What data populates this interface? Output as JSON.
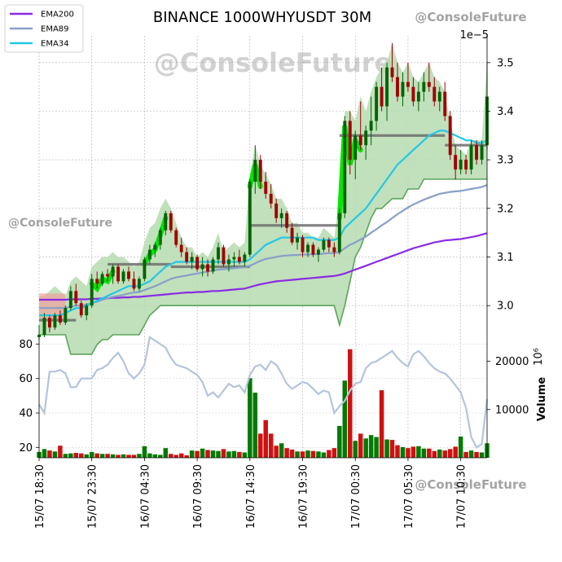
{
  "chart_data": {
    "type": "candlestick",
    "title": "BINANCE 1000WHYUSDT 30M",
    "price_exponent_label": "1e−5",
    "volume_exponent_label": "10⁶",
    "volume_axis_label": "Volume",
    "watermarks": [
      "@ConsoleFuture",
      "@ConsoleFuture",
      "@ConsoleFuture",
      "@ConsoleFuture"
    ],
    "legend": [
      {
        "name": "EMA200",
        "color": "#8a2be2"
      },
      {
        "name": "EMA89",
        "color": "#87a0c8"
      },
      {
        "name": "EMA34",
        "color": "#22c8e6"
      }
    ],
    "colors": {
      "up": "#006400",
      "down": "#a00000",
      "vol_up": "#007a00",
      "vol_down": "#d01010",
      "band_fill": "#b6dab0",
      "band_edge": "#5aa55a",
      "trend_hot": "#00e600",
      "level": "#6f6f6f",
      "rsi": "#b4c4dc"
    },
    "price_axis": {
      "ylim": [
        2.935,
        3.555
      ],
      "ticks": [
        3.0,
        3.1,
        3.2,
        3.3,
        3.4,
        3.5
      ],
      "tick_labels": [
        "3.0",
        "3.1",
        "3.2",
        "3.3",
        "3.4",
        "3.5"
      ]
    },
    "left_axis": {
      "ylim": [
        14,
        84
      ],
      "ticks": [
        20,
        40,
        60,
        80
      ],
      "tick_labels": [
        "20",
        "40",
        "60",
        "80"
      ]
    },
    "volume_axis": {
      "ylim": [
        0,
        25000
      ],
      "ticks": [
        10000,
        20000
      ],
      "tick_labels": [
        "10000",
        "20000"
      ]
    },
    "x_ticks": [
      {
        "index": 0,
        "label": "15/07 18:30"
      },
      {
        "index": 10,
        "label": "15/07 23:30"
      },
      {
        "index": 20,
        "label": "16/07 04:30"
      },
      {
        "index": 30,
        "label": "16/07 09:30"
      },
      {
        "index": 40,
        "label": "16/07 14:30"
      },
      {
        "index": 50,
        "label": "16/07 19:30"
      },
      {
        "index": 60,
        "label": "17/07 00:30"
      },
      {
        "index": 70,
        "label": "17/07 05:30"
      },
      {
        "index": 80,
        "label": "17/07 10:30"
      }
    ],
    "candles": [
      [
        2.935,
        2.96,
        2.93,
        2.94
      ],
      [
        2.94,
        2.985,
        2.935,
        2.975
      ],
      [
        2.975,
        2.98,
        2.945,
        2.955
      ],
      [
        2.955,
        2.985,
        2.95,
        2.98
      ],
      [
        2.98,
        2.99,
        2.96,
        2.965
      ],
      [
        2.965,
        3.0,
        2.96,
        2.995
      ],
      [
        2.995,
        3.04,
        2.99,
        3.03
      ],
      [
        3.03,
        3.045,
        3.0,
        3.005
      ],
      [
        3.005,
        3.01,
        2.975,
        2.98
      ],
      [
        2.98,
        3.005,
        2.97,
        3.0
      ],
      [
        3.0,
        3.065,
        2.995,
        3.055
      ],
      [
        3.055,
        3.07,
        3.035,
        3.045
      ],
      [
        3.045,
        3.07,
        3.04,
        3.065
      ],
      [
        3.065,
        3.075,
        3.05,
        3.06
      ],
      [
        3.06,
        3.085,
        3.045,
        3.08
      ],
      [
        3.08,
        3.085,
        3.045,
        3.05
      ],
      [
        3.05,
        3.075,
        3.045,
        3.07
      ],
      [
        3.07,
        3.08,
        3.05,
        3.055
      ],
      [
        3.055,
        3.07,
        3.03,
        3.035
      ],
      [
        3.035,
        3.06,
        3.03,
        3.055
      ],
      [
        3.055,
        3.1,
        3.05,
        3.095
      ],
      [
        3.095,
        3.125,
        3.085,
        3.115
      ],
      [
        3.115,
        3.13,
        3.1,
        3.125
      ],
      [
        3.125,
        3.16,
        3.115,
        3.155
      ],
      [
        3.155,
        3.195,
        3.145,
        3.19
      ],
      [
        3.19,
        3.195,
        3.15,
        3.155
      ],
      [
        3.155,
        3.16,
        3.12,
        3.125
      ],
      [
        3.125,
        3.14,
        3.1,
        3.11
      ],
      [
        3.11,
        3.12,
        3.085,
        3.09
      ],
      [
        3.09,
        3.11,
        3.075,
        3.1
      ],
      [
        3.1,
        3.105,
        3.07,
        3.075
      ],
      [
        3.075,
        3.1,
        3.06,
        3.085
      ],
      [
        3.085,
        3.095,
        3.06,
        3.07
      ],
      [
        3.07,
        3.1,
        3.065,
        3.095
      ],
      [
        3.095,
        3.13,
        3.085,
        3.12
      ],
      [
        3.12,
        3.125,
        3.08,
        3.085
      ],
      [
        3.085,
        3.105,
        3.07,
        3.095
      ],
      [
        3.095,
        3.11,
        3.08,
        3.1
      ],
      [
        3.1,
        3.115,
        3.085,
        3.09
      ],
      [
        3.09,
        3.11,
        3.08,
        3.105
      ],
      [
        3.105,
        3.26,
        3.1,
        3.255
      ],
      [
        3.255,
        3.33,
        3.23,
        3.3
      ],
      [
        3.3,
        3.31,
        3.24,
        3.255
      ],
      [
        3.255,
        3.275,
        3.22,
        3.23
      ],
      [
        3.23,
        3.25,
        3.2,
        3.21
      ],
      [
        3.21,
        3.22,
        3.17,
        3.18
      ],
      [
        3.18,
        3.2,
        3.16,
        3.19
      ],
      [
        3.19,
        3.195,
        3.15,
        3.16
      ],
      [
        3.16,
        3.17,
        3.125,
        3.13
      ],
      [
        3.13,
        3.15,
        3.115,
        3.14
      ],
      [
        3.14,
        3.145,
        3.1,
        3.11
      ],
      [
        3.11,
        3.13,
        3.1,
        3.125
      ],
      [
        3.125,
        3.13,
        3.1,
        3.105
      ],
      [
        3.105,
        3.12,
        3.09,
        3.115
      ],
      [
        3.115,
        3.14,
        3.11,
        3.135
      ],
      [
        3.135,
        3.14,
        3.11,
        3.12
      ],
      [
        3.12,
        3.13,
        3.1,
        3.11
      ],
      [
        3.11,
        3.2,
        3.105,
        3.19
      ],
      [
        3.19,
        3.39,
        3.18,
        3.38
      ],
      [
        3.38,
        3.4,
        3.27,
        3.3
      ],
      [
        3.3,
        3.36,
        3.26,
        3.35
      ],
      [
        3.35,
        3.42,
        3.32,
        3.33
      ],
      [
        3.33,
        3.37,
        3.3,
        3.36
      ],
      [
        3.36,
        3.43,
        3.33,
        3.38
      ],
      [
        3.38,
        3.46,
        3.36,
        3.45
      ],
      [
        3.45,
        3.49,
        3.4,
        3.41
      ],
      [
        3.41,
        3.5,
        3.38,
        3.49
      ],
      [
        3.49,
        3.54,
        3.46,
        3.47
      ],
      [
        3.47,
        3.5,
        3.42,
        3.43
      ],
      [
        3.43,
        3.48,
        3.41,
        3.46
      ],
      [
        3.46,
        3.5,
        3.44,
        3.45
      ],
      [
        3.45,
        3.47,
        3.41,
        3.42
      ],
      [
        3.42,
        3.46,
        3.4,
        3.44
      ],
      [
        3.44,
        3.48,
        3.42,
        3.46
      ],
      [
        3.46,
        3.5,
        3.44,
        3.45
      ],
      [
        3.45,
        3.47,
        3.41,
        3.42
      ],
      [
        3.42,
        3.45,
        3.4,
        3.44
      ],
      [
        3.44,
        3.46,
        3.38,
        3.39
      ],
      [
        3.39,
        3.4,
        3.3,
        3.31
      ],
      [
        3.31,
        3.33,
        3.26,
        3.28
      ],
      [
        3.28,
        3.32,
        3.27,
        3.3
      ],
      [
        3.3,
        3.31,
        3.27,
        3.28
      ],
      [
        3.28,
        3.34,
        3.27,
        3.33
      ],
      [
        3.33,
        3.34,
        3.29,
        3.3
      ],
      [
        3.3,
        3.34,
        3.29,
        3.33
      ],
      [
        3.33,
        3.5,
        3.32,
        3.43
      ]
    ],
    "ema34": [
      2.98,
      2.98,
      2.98,
      2.98,
      2.98,
      2.985,
      2.99,
      2.995,
      2.995,
      3.0,
      3.005,
      3.01,
      3.015,
      3.02,
      3.025,
      3.03,
      3.035,
      3.04,
      3.04,
      3.04,
      3.045,
      3.05,
      3.06,
      3.07,
      3.08,
      3.085,
      3.09,
      3.09,
      3.09,
      3.09,
      3.09,
      3.09,
      3.09,
      3.09,
      3.09,
      3.09,
      3.09,
      3.09,
      3.09,
      3.09,
      3.095,
      3.105,
      3.115,
      3.125,
      3.13,
      3.135,
      3.14,
      3.14,
      3.14,
      3.14,
      3.14,
      3.14,
      3.14,
      3.135,
      3.135,
      3.135,
      3.135,
      3.14,
      3.16,
      3.17,
      3.18,
      3.19,
      3.2,
      3.215,
      3.23,
      3.245,
      3.26,
      3.275,
      3.29,
      3.3,
      3.31,
      3.32,
      3.33,
      3.34,
      3.35,
      3.355,
      3.36,
      3.36,
      3.355,
      3.35,
      3.345,
      3.34,
      3.34,
      3.335,
      3.335,
      3.34
    ],
    "ema89": [
      2.995,
      2.995,
      2.995,
      2.995,
      2.995,
      2.995,
      2.998,
      3.0,
      3.0,
      3.002,
      3.005,
      3.008,
      3.012,
      3.015,
      3.018,
      3.02,
      3.022,
      3.025,
      3.027,
      3.028,
      3.032,
      3.036,
      3.04,
      3.045,
      3.05,
      3.055,
      3.058,
      3.06,
      3.062,
      3.064,
      3.066,
      3.068,
      3.07,
      3.072,
      3.074,
      3.075,
      3.076,
      3.077,
      3.078,
      3.079,
      3.082,
      3.087,
      3.092,
      3.096,
      3.098,
      3.1,
      3.102,
      3.103,
      3.104,
      3.104,
      3.105,
      3.105,
      3.106,
      3.106,
      3.107,
      3.108,
      3.108,
      3.11,
      3.118,
      3.125,
      3.13,
      3.136,
      3.142,
      3.15,
      3.157,
      3.165,
      3.172,
      3.18,
      3.188,
      3.195,
      3.202,
      3.208,
      3.213,
      3.218,
      3.222,
      3.226,
      3.23,
      3.232,
      3.234,
      3.235,
      3.236,
      3.238,
      3.24,
      3.242,
      3.244,
      3.248
    ],
    "ema200": [
      3.012,
      3.012,
      3.012,
      3.012,
      3.012,
      3.012,
      3.013,
      3.013,
      3.013,
      3.013,
      3.014,
      3.014,
      3.015,
      3.015,
      3.016,
      3.016,
      3.017,
      3.017,
      3.018,
      3.018,
      3.019,
      3.02,
      3.021,
      3.022,
      3.023,
      3.024,
      3.025,
      3.026,
      3.027,
      3.027,
      3.028,
      3.028,
      3.029,
      3.03,
      3.03,
      3.031,
      3.032,
      3.033,
      3.034,
      3.035,
      3.038,
      3.041,
      3.044,
      3.046,
      3.048,
      3.05,
      3.051,
      3.052,
      3.053,
      3.054,
      3.055,
      3.056,
      3.057,
      3.058,
      3.059,
      3.06,
      3.061,
      3.063,
      3.066,
      3.07,
      3.074,
      3.078,
      3.082,
      3.086,
      3.09,
      3.094,
      3.098,
      3.102,
      3.106,
      3.11,
      3.114,
      3.118,
      3.121,
      3.124,
      3.127,
      3.13,
      3.132,
      3.134,
      3.135,
      3.136,
      3.137,
      3.139,
      3.141,
      3.143,
      3.146,
      3.149
    ],
    "band_lower": [
      2.94,
      2.94,
      2.94,
      2.94,
      2.94,
      2.94,
      2.9,
      2.9,
      2.9,
      2.9,
      2.9,
      2.92,
      2.93,
      2.93,
      2.94,
      2.94,
      2.94,
      2.94,
      2.94,
      2.94,
      2.96,
      2.98,
      2.99,
      3.0,
      3.0,
      3.0,
      3.0,
      3.0,
      3.0,
      3.0,
      3.0,
      3.0,
      3.0,
      3.0,
      3.0,
      3.0,
      3.0,
      3.0,
      3.0,
      3.0,
      3.0,
      3.0,
      3.0,
      3.0,
      3.0,
      3.0,
      3.0,
      3.0,
      3.0,
      3.0,
      3.0,
      3.0,
      3.0,
      3.0,
      3.0,
      3.0,
      3.0,
      2.96,
      3.0,
      3.05,
      3.1,
      3.12,
      3.15,
      3.18,
      3.2,
      3.2,
      3.21,
      3.22,
      3.22,
      3.22,
      3.24,
      3.24,
      3.24,
      3.26,
      3.26,
      3.26,
      3.26,
      3.26,
      3.26,
      3.26,
      3.26,
      3.26,
      3.26,
      3.26,
      3.26,
      3.26
    ],
    "band_upper": [
      3.02,
      3.02,
      3.03,
      3.04,
      3.03,
      3.02,
      3.05,
      3.06,
      3.05,
      3.04,
      3.08,
      3.09,
      3.1,
      3.1,
      3.11,
      3.1,
      3.1,
      3.09,
      3.08,
      3.09,
      3.13,
      3.16,
      3.17,
      3.2,
      3.22,
      3.2,
      3.17,
      3.14,
      3.12,
      3.12,
      3.1,
      3.11,
      3.1,
      3.12,
      3.15,
      3.11,
      3.12,
      3.13,
      3.12,
      3.13,
      3.27,
      3.33,
      3.29,
      3.27,
      3.25,
      3.22,
      3.22,
      3.2,
      3.17,
      3.17,
      3.15,
      3.15,
      3.14,
      3.14,
      3.16,
      3.15,
      3.14,
      3.22,
      3.4,
      3.4,
      3.38,
      3.43,
      3.4,
      3.44,
      3.47,
      3.49,
      3.5,
      3.54,
      3.5,
      3.48,
      3.5,
      3.47,
      3.46,
      3.48,
      3.5,
      3.47,
      3.46,
      3.44,
      3.38,
      3.33,
      3.32,
      3.31,
      3.34,
      3.34,
      3.34,
      3.5
    ],
    "levels": [
      {
        "from": 0,
        "to": 7,
        "value": 2.97
      },
      {
        "from": 13,
        "to": 25,
        "value": 3.085
      },
      {
        "from": 25,
        "to": 40,
        "value": 3.08
      },
      {
        "from": 40,
        "to": 57,
        "value": 3.165
      },
      {
        "from": 57,
        "to": 77,
        "value": 3.35
      },
      {
        "from": 77,
        "to": 85,
        "value": 3.33
      }
    ],
    "hot_segments": [
      {
        "from": 10,
        "to": 14
      },
      {
        "from": 20,
        "to": 24
      },
      {
        "from": 40,
        "to": 42
      },
      {
        "from": 57,
        "to": 61
      }
    ],
    "red_zone": {
      "from": 0,
      "to": 5,
      "upper": 3.025,
      "lower": 2.97
    },
    "rsi": [
      45,
      40,
      64,
      64,
      65,
      63,
      55,
      55,
      60,
      60,
      60,
      65,
      66,
      68,
      72,
      75,
      70,
      63,
      60,
      63,
      68,
      84,
      82,
      80,
      78,
      72,
      68,
      67,
      66,
      64,
      62,
      58,
      50,
      52,
      49,
      53,
      57,
      55,
      56,
      52,
      62,
      67,
      68,
      65,
      70,
      68,
      63,
      57,
      54,
      56,
      58,
      57,
      54,
      51,
      53,
      52,
      40,
      44,
      47,
      53,
      57,
      58,
      66,
      69,
      70,
      72,
      74,
      76,
      72,
      69,
      67,
      74,
      76,
      73,
      69,
      66,
      64,
      63,
      60,
      56,
      52,
      43,
      26,
      20,
      22,
      48
    ],
    "volume": [
      1200,
      1800,
      1500,
      1300,
      2500,
      800,
      900,
      1000,
      900,
      700,
      1200,
      900,
      800,
      800,
      700,
      600,
      700,
      600,
      600,
      800,
      2400,
      900,
      700,
      600,
      2000,
      800,
      600,
      900,
      500,
      1500,
      1400,
      1900,
      1600,
      1500,
      1400,
      1800,
      1300,
      1400,
      1200,
      1100,
      16500,
      13500,
      5000,
      7800,
      5000,
      2500,
      3000,
      2000,
      1700,
      1300,
      1300,
      1500,
      1400,
      1300,
      1100,
      1600,
      2000,
      6600,
      16000,
      22500,
      3500,
      5000,
      4000,
      4700,
      4300,
      14000,
      3800,
      3700,
      2600,
      2200,
      2000,
      2300,
      2400,
      1900,
      1900,
      1400,
      1700,
      1500,
      1800,
      2300,
      4400,
      1200,
      1500,
      1200,
      1100,
      3000
    ]
  }
}
